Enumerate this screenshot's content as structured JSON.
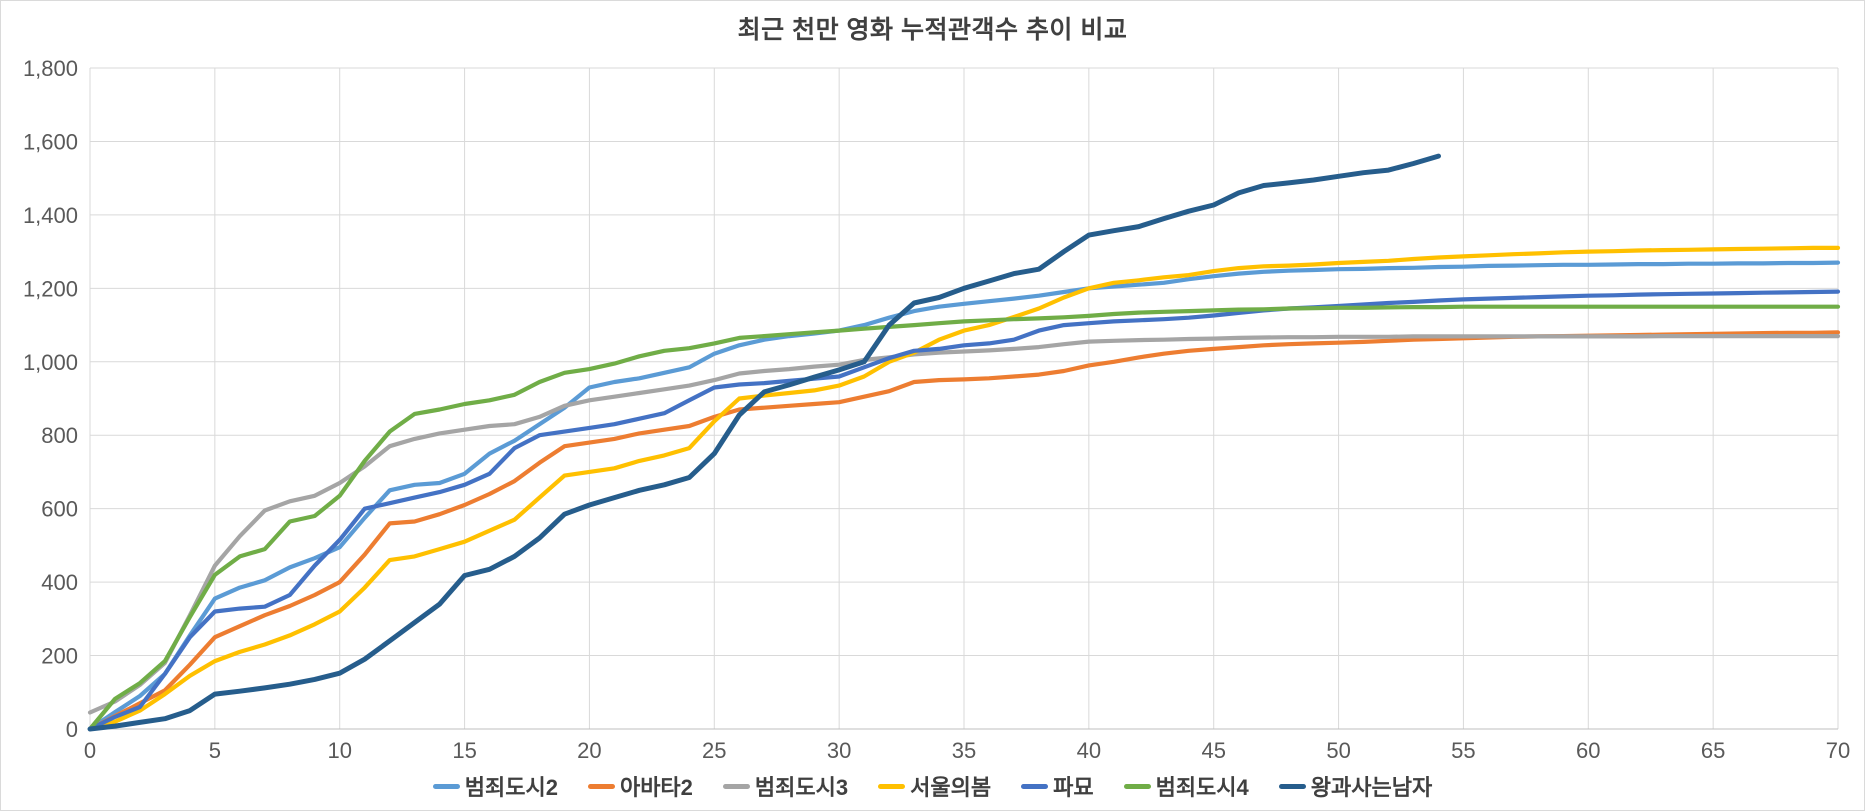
{
  "frame": {
    "background": "#FFFFFF",
    "border_color": "#DADADA"
  },
  "styles": {
    "grid_color": "#D9D9D9",
    "axis_line_color": "#BFBFBF",
    "tick_label_color": "#595959",
    "title_color": "#404040",
    "legend_text_color": "#404040"
  },
  "chart_data": {
    "type": "line",
    "title": "최근 천만 영화 누적관객수 추이 비교",
    "xlabel": "",
    "ylabel": "",
    "xlim": [
      0,
      70
    ],
    "ylim": [
      0,
      1800
    ],
    "x_tick_step": 5,
    "y_tick_step": 200,
    "grid": true,
    "legend_position": "bottom",
    "x_tick_labels": [
      "0",
      "5",
      "10",
      "15",
      "20",
      "25",
      "30",
      "35",
      "40",
      "45",
      "50",
      "55",
      "60",
      "65",
      "70"
    ],
    "y_tick_labels": [
      "0",
      "200",
      "400",
      "600",
      "800",
      "1,000",
      "1,200",
      "1,400",
      "1,600",
      "1,800"
    ],
    "x_unit": "day-index",
    "series": [
      {
        "id": "crime-city-2",
        "name": "범죄도시2",
        "color": "#5B9BD5",
        "values": [
          0,
          46,
          90,
          150,
          255,
          355,
          385,
          405,
          440,
          465,
          495,
          575,
          650,
          665,
          670,
          695,
          750,
          785,
          830,
          875,
          930,
          945,
          955,
          970,
          985,
          1022,
          1045,
          1060,
          1070,
          1077,
          1085,
          1100,
          1120,
          1138,
          1150,
          1158,
          1165,
          1172,
          1180,
          1190,
          1200,
          1205,
          1210,
          1215,
          1225,
          1233,
          1240,
          1245,
          1248,
          1250,
          1252,
          1253,
          1255,
          1256,
          1258,
          1259,
          1261,
          1262,
          1263,
          1264,
          1264,
          1265,
          1266,
          1266,
          1267,
          1267,
          1268,
          1268,
          1269,
          1269,
          1270
        ]
      },
      {
        "id": "avatar-2",
        "name": "아바타2",
        "color": "#ED7D31",
        "values": [
          0,
          35,
          70,
          105,
          175,
          250,
          280,
          310,
          335,
          365,
          400,
          475,
          560,
          565,
          585,
          610,
          640,
          675,
          725,
          770,
          780,
          790,
          805,
          815,
          825,
          850,
          870,
          875,
          880,
          885,
          890,
          905,
          920,
          945,
          950,
          952,
          955,
          960,
          965,
          975,
          990,
          1000,
          1012,
          1022,
          1030,
          1035,
          1040,
          1045,
          1048,
          1050,
          1052,
          1054,
          1057,
          1060,
          1062,
          1064,
          1066,
          1068,
          1069,
          1070,
          1071,
          1072,
          1073,
          1074,
          1075,
          1076,
          1077,
          1078,
          1079,
          1079,
          1080
        ]
      },
      {
        "id": "crime-city-3",
        "name": "범죄도시3",
        "color": "#A5A5A5",
        "values": [
          45,
          75,
          120,
          180,
          310,
          445,
          525,
          595,
          620,
          635,
          670,
          715,
          770,
          790,
          805,
          815,
          825,
          830,
          850,
          880,
          895,
          905,
          915,
          925,
          935,
          950,
          968,
          975,
          980,
          987,
          992,
          1005,
          1012,
          1020,
          1025,
          1028,
          1031,
          1035,
          1040,
          1048,
          1055,
          1057,
          1059,
          1060,
          1062,
          1063,
          1065,
          1066,
          1067,
          1067,
          1068,
          1068,
          1068,
          1069,
          1069,
          1069,
          1069,
          1069,
          1069,
          1069,
          1069,
          1069,
          1069,
          1070,
          1070,
          1070,
          1070,
          1070,
          1070,
          1070,
          1070
        ]
      },
      {
        "id": "seoul-spring",
        "name": "서울의봄",
        "color": "#FFC000",
        "values": [
          0,
          20,
          50,
          95,
          145,
          185,
          210,
          230,
          255,
          285,
          320,
          385,
          460,
          470,
          490,
          510,
          540,
          570,
          630,
          690,
          700,
          710,
          730,
          745,
          765,
          838,
          900,
          908,
          915,
          922,
          935,
          960,
          1000,
          1025,
          1060,
          1085,
          1100,
          1122,
          1145,
          1175,
          1200,
          1215,
          1222,
          1230,
          1236,
          1247,
          1255,
          1260,
          1262,
          1265,
          1269,
          1272,
          1275,
          1280,
          1284,
          1287,
          1290,
          1293,
          1295,
          1298,
          1300,
          1301,
          1303,
          1304,
          1305,
          1306,
          1307,
          1308,
          1309,
          1310,
          1310
        ]
      },
      {
        "id": "exhuma",
        "name": "파묘",
        "color": "#4472C4",
        "values": [
          0,
          33,
          60,
          150,
          250,
          320,
          328,
          333,
          365,
          445,
          515,
          600,
          615,
          630,
          645,
          665,
          695,
          765,
          800,
          810,
          820,
          830,
          845,
          860,
          895,
          930,
          938,
          942,
          948,
          954,
          960,
          985,
          1010,
          1030,
          1035,
          1045,
          1050,
          1060,
          1085,
          1100,
          1105,
          1110,
          1113,
          1116,
          1120,
          1126,
          1133,
          1140,
          1145,
          1148,
          1152,
          1156,
          1160,
          1163,
          1167,
          1170,
          1172,
          1174,
          1176,
          1178,
          1180,
          1181,
          1183,
          1184,
          1185,
          1186,
          1187,
          1188,
          1189,
          1190,
          1191
        ]
      },
      {
        "id": "crime-city-4",
        "name": "범죄도시4",
        "color": "#70AD47",
        "values": [
          0,
          82,
          125,
          185,
          305,
          420,
          470,
          490,
          565,
          580,
          635,
          730,
          810,
          858,
          870,
          885,
          895,
          910,
          945,
          970,
          980,
          995,
          1015,
          1030,
          1037,
          1050,
          1065,
          1070,
          1075,
          1080,
          1085,
          1090,
          1095,
          1100,
          1105,
          1110,
          1113,
          1116,
          1118,
          1121,
          1125,
          1130,
          1134,
          1136,
          1138,
          1140,
          1142,
          1143,
          1145,
          1146,
          1147,
          1147,
          1148,
          1149,
          1149,
          1150,
          1150,
          1150,
          1150,
          1150,
          1150,
          1150,
          1150,
          1150,
          1150,
          1150,
          1150,
          1150,
          1150,
          1150,
          1150
        ]
      },
      {
        "id": "wang-gwa-saneun-namja",
        "name": "왕과사는남자",
        "color": "#265D8C",
        "values": [
          0,
          8,
          18,
          28,
          50,
          95,
          103,
          112,
          122,
          135,
          152,
          190,
          240,
          290,
          340,
          418,
          435,
          470,
          520,
          585,
          610,
          630,
          650,
          665,
          685,
          750,
          855,
          918,
          937,
          958,
          978,
          1000,
          1100,
          1160,
          1175,
          1200,
          1220,
          1240,
          1252,
          1300,
          1345,
          1357,
          1368,
          1390,
          1410,
          1427,
          1460,
          1480,
          1487,
          1495,
          1505,
          1515,
          1522,
          1540,
          1560
        ]
      }
    ]
  }
}
